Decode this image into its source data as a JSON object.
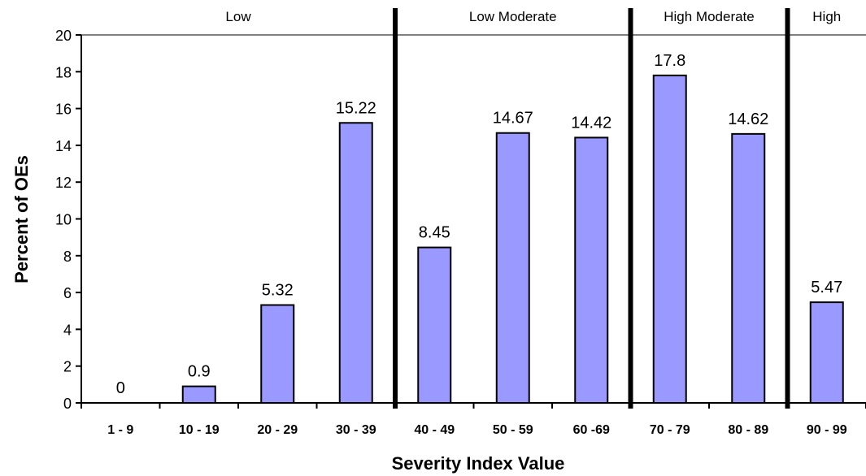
{
  "chart_data": {
    "type": "bar",
    "categories": [
      "1 - 9",
      "10 - 19",
      "20 - 29",
      "30 - 39",
      "40 - 49",
      "50 - 59",
      "60 -69",
      "70 - 79",
      "80 - 89",
      "90 - 99"
    ],
    "values": [
      0,
      0.9,
      5.32,
      15.22,
      8.45,
      14.67,
      14.42,
      17.8,
      14.62,
      5.47
    ],
    "data_labels": [
      "0",
      "0.9",
      "5.32",
      "15.22",
      "8.45",
      "14.67",
      "14.42",
      "17.8",
      "14.62",
      "5.47"
    ],
    "xlabel": "Severity Index Value",
    "ylabel": "Percent of OEs",
    "ylim": [
      0,
      20
    ],
    "yticks": [
      0,
      2,
      4,
      6,
      8,
      10,
      12,
      14,
      16,
      18,
      20
    ],
    "grid": false,
    "bands": [
      {
        "label": "Low",
        "categories": [
          "1 - 9",
          "10 - 19",
          "20 - 29",
          "30 - 39"
        ]
      },
      {
        "label": "Low Moderate",
        "categories": [
          "40 - 49",
          "50 - 59",
          "60 -69"
        ]
      },
      {
        "label": "High Moderate",
        "categories": [
          "70 - 79",
          "80 - 89"
        ]
      },
      {
        "label": "High",
        "categories": [
          "90 - 99"
        ]
      }
    ],
    "colors": {
      "bar_fill": "#9999ff",
      "bar_stroke": "#000000",
      "divider": "#000000",
      "top_rule": "#808080"
    }
  }
}
